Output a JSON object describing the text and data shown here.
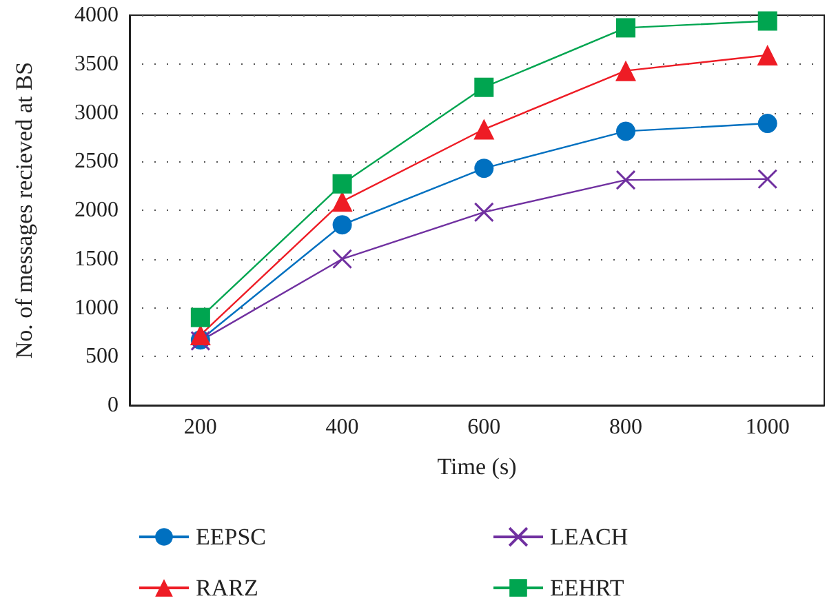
{
  "chart_data": {
    "type": "line",
    "xlabel": "Time (s)",
    "ylabel": "No. of messages recieved at BS",
    "x": [
      200,
      400,
      600,
      800,
      1000
    ],
    "series": [
      {
        "name": "EEPSC",
        "color": "#0070c0",
        "marker": "circle",
        "values": [
          670,
          1850,
          2430,
          2810,
          2890
        ]
      },
      {
        "name": "LEACH",
        "color": "#7030a0",
        "marker": "cross",
        "values": [
          660,
          1500,
          1980,
          2310,
          2320
        ]
      },
      {
        "name": "RARZ",
        "color": "#ee1c25",
        "marker": "triangle",
        "values": [
          720,
          2090,
          2830,
          3430,
          3590
        ]
      },
      {
        "name": "EEHRT",
        "color": "#00a550",
        "marker": "square",
        "values": [
          900,
          2270,
          3260,
          3870,
          3940
        ]
      }
    ],
    "xlim": [
      100,
      1080
    ],
    "xticks": [
      200,
      400,
      600,
      800,
      1000
    ],
    "ylim": [
      0,
      4000
    ],
    "yticks": [
      0,
      500,
      1000,
      1500,
      2000,
      2500,
      3000,
      3500,
      4000
    ],
    "grid": "y",
    "legend": "bottom",
    "line_style": "solid"
  }
}
